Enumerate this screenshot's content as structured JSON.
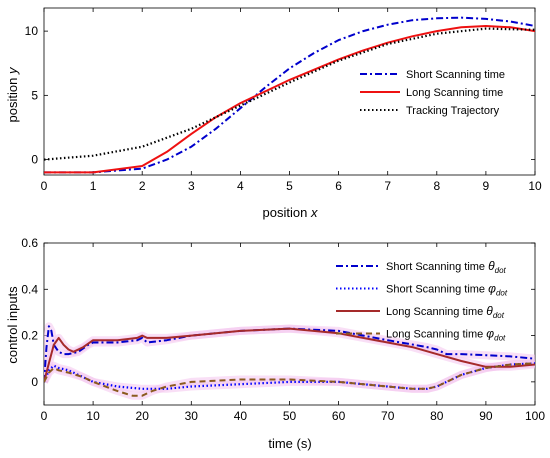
{
  "chart_data": [
    {
      "type": "line",
      "xlabel_text": "position",
      "xlabel_var": "x",
      "ylabel_text": "position",
      "ylabel_var": "y",
      "xlim": [
        0,
        10
      ],
      "ylim": [
        -1.2,
        11.8
      ],
      "xticks": [
        0,
        1,
        2,
        3,
        4,
        5,
        6,
        7,
        8,
        9,
        10
      ],
      "yticks": [
        0,
        5,
        10
      ],
      "legend_position": "center-right",
      "grid": false,
      "series": [
        {
          "name": "Short Scanning time",
          "color": "#0000cc",
          "style": "dashdot",
          "x": [
            0,
            1,
            2,
            2.5,
            3,
            3.5,
            4,
            4.5,
            5,
            5.5,
            6,
            6.5,
            7,
            7.5,
            8,
            8.5,
            9,
            9.5,
            10
          ],
          "y": [
            -1,
            -1,
            -0.7,
            0,
            1.0,
            2.4,
            4.0,
            5.6,
            7.1,
            8.3,
            9.3,
            10.0,
            10.5,
            10.85,
            11.0,
            11.05,
            10.95,
            10.75,
            10.4
          ]
        },
        {
          "name": "Long Scanning time",
          "color": "#ee1111",
          "style": "solid",
          "x": [
            0,
            1,
            2,
            2.5,
            3,
            3.5,
            4,
            4.5,
            5,
            5.5,
            6,
            6.5,
            7,
            7.5,
            8,
            8.5,
            9,
            9.5,
            10
          ],
          "y": [
            -1,
            -1,
            -0.5,
            0.6,
            2.0,
            3.3,
            4.4,
            5.3,
            6.2,
            7.0,
            7.8,
            8.5,
            9.1,
            9.6,
            10.0,
            10.3,
            10.4,
            10.3,
            10.0
          ]
        },
        {
          "name": "Tracking Trajectory",
          "color": "#000000",
          "style": "dotted",
          "x": [
            0,
            1,
            2,
            3,
            4,
            5,
            6,
            7,
            8,
            9,
            10
          ],
          "y": [
            0,
            0.3,
            1.0,
            2.4,
            4.2,
            6.0,
            7.7,
            9.0,
            9.8,
            10.2,
            10.1
          ]
        }
      ]
    },
    {
      "type": "line",
      "xlabel": "time (s)",
      "ylabel": "control inputs",
      "xlim": [
        0,
        100
      ],
      "ylim": [
        -0.1,
        0.6
      ],
      "xticks": [
        0,
        10,
        20,
        30,
        40,
        50,
        60,
        70,
        80,
        90,
        100
      ],
      "yticks": [
        0,
        0.2,
        0.4,
        0.6
      ],
      "ytick_labels": [
        "0",
        "0.2",
        "0.4",
        "0.6"
      ],
      "legend_position": "top-right",
      "grid": false,
      "band_color": "#f4c4ee",
      "series": [
        {
          "name": "Short Scanning time",
          "subscript_symbol": "θ",
          "subscript": "dot",
          "color": "#0000cc",
          "style": "dashdot",
          "x": [
            0,
            0.5,
            1,
            1.5,
            2,
            3,
            4,
            5,
            7,
            9,
            10,
            15,
            19,
            20,
            21,
            25,
            30,
            40,
            50,
            60,
            70,
            78,
            80,
            82,
            85,
            90,
            95,
            100
          ],
          "y": [
            0,
            0.15,
            0.24,
            0.22,
            0.16,
            0.13,
            0.12,
            0.12,
            0.13,
            0.16,
            0.17,
            0.17,
            0.18,
            0.19,
            0.17,
            0.18,
            0.2,
            0.22,
            0.23,
            0.22,
            0.18,
            0.15,
            0.14,
            0.12,
            0.12,
            0.115,
            0.11,
            0.1
          ]
        },
        {
          "name": "Short Scanning time",
          "subscript_symbol": "φ",
          "subscript": "dot",
          "color": "#0000ff",
          "style": "dotted",
          "x": [
            0,
            1,
            2,
            3,
            5,
            8,
            10,
            15,
            20,
            25,
            30,
            40,
            50,
            60,
            70,
            75,
            78,
            80,
            82,
            85,
            90,
            95,
            100
          ],
          "y": [
            0,
            0.05,
            0.07,
            0.06,
            0.05,
            0.02,
            0.0,
            -0.02,
            -0.03,
            -0.03,
            -0.02,
            -0.01,
            0.0,
            0.0,
            -0.02,
            -0.03,
            -0.03,
            -0.02,
            0.0,
            0.03,
            0.06,
            0.075,
            0.08
          ]
        },
        {
          "name": "Long Scanning time",
          "subscript_symbol": "θ",
          "subscript": "dot",
          "color": "#a52a2a",
          "style": "solid",
          "x": [
            0,
            1,
            2,
            3,
            4,
            5,
            6,
            8,
            10,
            15,
            19,
            20,
            21,
            25,
            30,
            40,
            50,
            60,
            70,
            75,
            80,
            85,
            90,
            95,
            100
          ],
          "y": [
            0,
            0.08,
            0.16,
            0.19,
            0.16,
            0.14,
            0.13,
            0.15,
            0.18,
            0.18,
            0.19,
            0.2,
            0.19,
            0.19,
            0.2,
            0.22,
            0.23,
            0.21,
            0.17,
            0.15,
            0.12,
            0.09,
            0.065,
            0.065,
            0.075
          ]
        },
        {
          "name": "Long Scanning time",
          "subscript_symbol": "φ",
          "subscript": "dot",
          "color": "#8b5a1e",
          "style": "dashed",
          "x": [
            0,
            1,
            2,
            3,
            5,
            8,
            10,
            15,
            18,
            20,
            22,
            25,
            30,
            40,
            50,
            60,
            70,
            75,
            78,
            80,
            82,
            85,
            90,
            95,
            100
          ],
          "y": [
            0,
            0.04,
            0.06,
            0.05,
            0.04,
            0.02,
            0.0,
            -0.04,
            -0.06,
            -0.06,
            -0.04,
            -0.02,
            0.0,
            0.01,
            0.01,
            0.0,
            -0.02,
            -0.03,
            -0.03,
            -0.02,
            0.0,
            0.03,
            0.06,
            0.075,
            0.08
          ]
        }
      ]
    }
  ]
}
